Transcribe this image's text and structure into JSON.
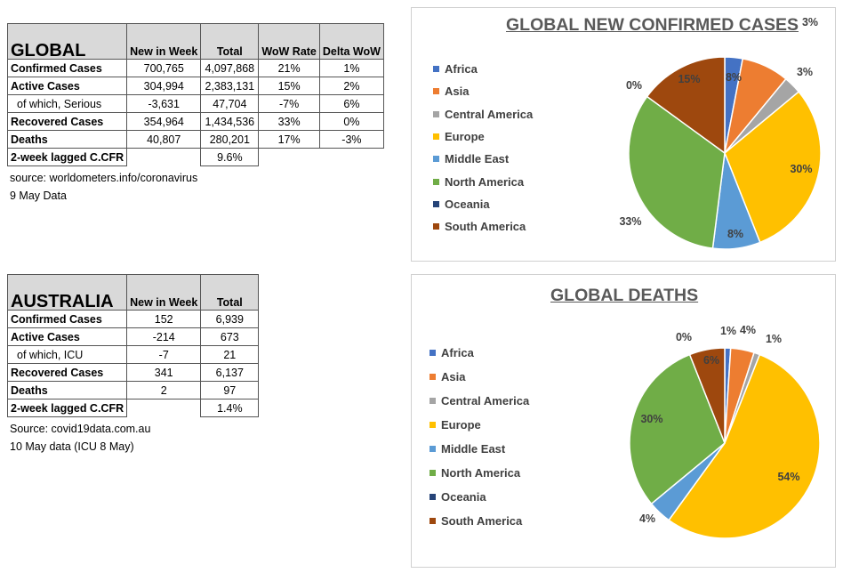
{
  "global_table": {
    "title": "GLOBAL",
    "headers": [
      "New in Week",
      "Total",
      "WoW Rate",
      "Delta WoW"
    ],
    "rows": [
      {
        "label": "Confirmed Cases",
        "sub": false,
        "values": [
          "700,765",
          "4,097,868",
          "21%",
          "1%"
        ]
      },
      {
        "label": "Active Cases",
        "sub": false,
        "values": [
          "304,994",
          "2,383,131",
          "15%",
          "2%"
        ]
      },
      {
        "label": "of which, Serious",
        "sub": true,
        "values": [
          "-3,631",
          "47,704",
          "-7%",
          "6%"
        ]
      },
      {
        "label": "Recovered Cases",
        "sub": false,
        "values": [
          "354,964",
          "1,434,536",
          "33%",
          "0%"
        ]
      },
      {
        "label": "Deaths",
        "sub": false,
        "values": [
          "40,807",
          "280,201",
          "17%",
          "-3%"
        ]
      }
    ],
    "cfr_label": "2-week lagged C.CFR",
    "cfr_value": "9.6%",
    "source": "source: worldometers.info/coronavirus",
    "date": "9 May Data"
  },
  "australia_table": {
    "title": "AUSTRALIA",
    "headers": [
      "New in Week",
      "Total"
    ],
    "rows": [
      {
        "label": "Confirmed Cases",
        "sub": false,
        "values": [
          "152",
          "6,939"
        ]
      },
      {
        "label": "Active Cases",
        "sub": false,
        "values": [
          "-214",
          "673"
        ]
      },
      {
        "label": "of which, ICU",
        "sub": true,
        "values": [
          "-7",
          "21"
        ]
      },
      {
        "label": "Recovered Cases",
        "sub": false,
        "values": [
          "341",
          "6,137"
        ]
      },
      {
        "label": "Deaths",
        "sub": false,
        "values": [
          "2",
          "97"
        ]
      }
    ],
    "cfr_label": "2-week lagged C.CFR",
    "cfr_value": "1.4%",
    "source": "Source: covid19data.com.au",
    "date": "10 May data (ICU 8 May)"
  },
  "chart_data": [
    {
      "type": "pie",
      "title": "GLOBAL NEW CONFIRMED CASES",
      "legend_position": "left",
      "categories": [
        "Africa",
        "Asia",
        "Central America",
        "Europe",
        "Middle East",
        "North America",
        "Oceania",
        "South America"
      ],
      "values": [
        3,
        8,
        3,
        30,
        8,
        33,
        0,
        15
      ],
      "labels": [
        "3%",
        "8%",
        "3%",
        "30%",
        "8%",
        "33%",
        "0%",
        "15%"
      ],
      "colors": [
        "#4472c4",
        "#ed7d31",
        "#a5a5a5",
        "#ffc000",
        "#5b9bd5",
        "#70ad47",
        "#264478",
        "#9e480e"
      ]
    },
    {
      "type": "pie",
      "title": "GLOBAL DEATHS",
      "legend_position": "left",
      "categories": [
        "Africa",
        "Asia",
        "Central America",
        "Europe",
        "Middle East",
        "North America",
        "Oceania",
        "South America"
      ],
      "values": [
        1,
        4,
        1,
        54,
        4,
        30,
        0,
        6
      ],
      "labels": [
        "1%",
        "4%",
        "1%",
        "54%",
        "4%",
        "30%",
        "0%",
        "6%"
      ],
      "colors": [
        "#4472c4",
        "#ed7d31",
        "#a5a5a5",
        "#ffc000",
        "#5b9bd5",
        "#70ad47",
        "#264478",
        "#9e480e"
      ]
    }
  ]
}
